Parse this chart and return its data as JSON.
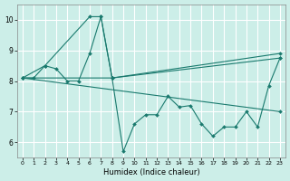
{
  "xlabel": "Humidex (Indice chaleur)",
  "bg_color": "#cceee8",
  "grid_color": "#ffffff",
  "line_color": "#1a7a6e",
  "xlim": [
    -0.5,
    23.5
  ],
  "ylim": [
    5.5,
    10.5
  ],
  "xticks": [
    0,
    1,
    2,
    3,
    4,
    5,
    6,
    7,
    8,
    9,
    10,
    11,
    12,
    13,
    14,
    15,
    16,
    17,
    18,
    19,
    20,
    21,
    22,
    23
  ],
  "yticks": [
    6,
    7,
    8,
    9,
    10
  ],
  "line1_x": [
    0,
    1,
    2,
    3,
    4,
    5,
    6,
    7,
    8,
    9,
    10,
    11,
    12,
    13,
    14,
    15,
    16,
    17,
    18,
    19,
    20,
    21,
    22,
    23
  ],
  "line1_y": [
    8.1,
    8.1,
    8.5,
    8.4,
    8.0,
    8.0,
    8.9,
    10.1,
    8.1,
    5.7,
    6.6,
    6.9,
    6.9,
    7.5,
    7.15,
    7.2,
    6.6,
    6.2,
    6.5,
    6.5,
    7.0,
    6.5,
    7.85,
    8.75
  ],
  "line2_x": [
    0,
    2,
    6,
    7,
    8,
    23
  ],
  "line2_y": [
    8.1,
    8.5,
    10.1,
    10.1,
    8.1,
    8.75
  ],
  "line3_x": [
    0,
    8,
    23
  ],
  "line3_y": [
    8.1,
    8.1,
    8.9
  ],
  "line4_x": [
    0,
    23
  ],
  "line4_y": [
    8.1,
    7.0
  ]
}
